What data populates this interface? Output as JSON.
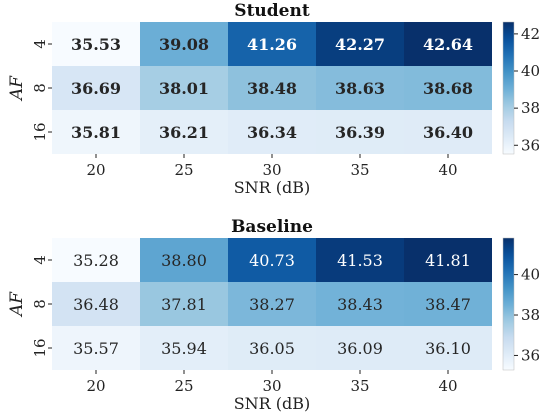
{
  "chart_data": [
    {
      "type": "heatmap",
      "title": "Student",
      "xlabel": "SNR (dB)",
      "ylabel": "AF",
      "x_ticks": [
        "20",
        "25",
        "30",
        "35",
        "40"
      ],
      "y_ticks": [
        "4",
        "8",
        "16"
      ],
      "values": [
        [
          35.53,
          39.08,
          41.26,
          42.27,
          42.64
        ],
        [
          36.69,
          38.01,
          38.48,
          38.63,
          38.68
        ],
        [
          35.81,
          36.21,
          36.34,
          36.39,
          36.4
        ]
      ],
      "value_labels": [
        [
          "35.53",
          "39.08",
          "41.26",
          "42.27",
          "42.64"
        ],
        [
          "36.69",
          "38.01",
          "38.48",
          "38.63",
          "38.68"
        ],
        [
          "35.81",
          "36.21",
          "36.34",
          "36.39",
          "36.40"
        ]
      ],
      "bold_labels": true,
      "colormap": "Blues",
      "vmin": 35.53,
      "vmax": 42.64,
      "colorbar_ticks": [
        "36",
        "38",
        "40",
        "42"
      ],
      "colorbar_tick_values": [
        36,
        38,
        40,
        42
      ]
    },
    {
      "type": "heatmap",
      "title": "Baseline",
      "xlabel": "SNR (dB)",
      "ylabel": "AF",
      "x_ticks": [
        "20",
        "25",
        "30",
        "35",
        "40"
      ],
      "y_ticks": [
        "4",
        "8",
        "16"
      ],
      "values": [
        [
          35.28,
          38.8,
          40.73,
          41.53,
          41.81
        ],
        [
          36.48,
          37.81,
          38.27,
          38.43,
          38.47
        ],
        [
          35.57,
          35.94,
          36.05,
          36.09,
          36.1
        ]
      ],
      "value_labels": [
        [
          "35.28",
          "38.80",
          "40.73",
          "41.53",
          "41.81"
        ],
        [
          "36.48",
          "37.81",
          "38.27",
          "38.43",
          "38.47"
        ],
        [
          "35.57",
          "35.94",
          "36.05",
          "36.09",
          "36.10"
        ]
      ],
      "bold_labels": false,
      "colormap": "Blues",
      "vmin": 35.28,
      "vmax": 41.81,
      "colorbar_ticks": [
        "36",
        "38",
        "40"
      ],
      "colorbar_tick_values": [
        36,
        38,
        40
      ]
    }
  ]
}
